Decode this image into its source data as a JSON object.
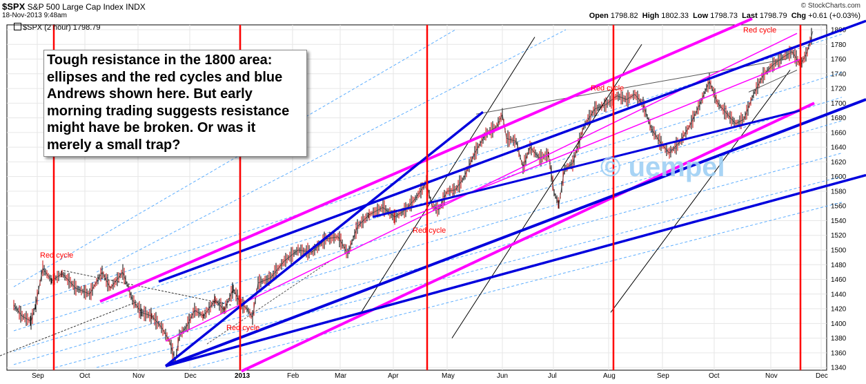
{
  "header": {
    "symbol": "$SPX",
    "name": "S&P 500 Large Cap Index  INDX",
    "date": "18-Nov-2013 9:48am",
    "copyright": "© StockCharts.com",
    "open_label": "Open",
    "open": "1798.82",
    "high_label": "High",
    "high": "1802.33",
    "low_label": "Low",
    "low": "1798.73",
    "last_label": "Last",
    "last": "1798.79",
    "chg_label": "Chg",
    "chg": "+0.61 (+0.03%)",
    "legend": "$SPX (2 hour) 1798.79"
  },
  "annotation": {
    "text": "Tough resistance in the 1800 area: ellipses and the red cycles and blue Andrews shown here. But early morning trading suggests resistance might have be broken. Or was it merely a small trap?"
  },
  "watermark": "© uempel",
  "colors": {
    "red_cycle": "#ff0000",
    "andrews": "#0000dd",
    "ellipse": "#ff00ff",
    "channel": "#3399ff",
    "candle_up": "#000000",
    "candle_down": "#cc0000"
  },
  "chart_data": {
    "type": "line",
    "series": [
      {
        "values": [
          [
            0,
            1425
          ],
          [
            12,
            1410
          ],
          [
            25,
            1403
          ],
          [
            32,
            1426
          ],
          [
            42,
            1475
          ],
          [
            55,
            1458
          ],
          [
            70,
            1468
          ],
          [
            90,
            1448
          ],
          [
            110,
            1440
          ],
          [
            128,
            1470
          ],
          [
            140,
            1448
          ],
          [
            158,
            1470
          ],
          [
            172,
            1432
          ],
          [
            185,
            1415
          ],
          [
            200,
            1410
          ],
          [
            214,
            1395
          ],
          [
            226,
            1375
          ],
          [
            234,
            1348
          ],
          [
            240,
            1384
          ],
          [
            250,
            1395
          ],
          [
            262,
            1418
          ],
          [
            275,
            1410
          ],
          [
            292,
            1432
          ],
          [
            305,
            1418
          ],
          [
            318,
            1447
          ],
          [
            328,
            1428
          ],
          [
            338,
            1420
          ],
          [
            346,
            1408
          ],
          [
            354,
            1455
          ],
          [
            372,
            1462
          ],
          [
            392,
            1485
          ],
          [
            412,
            1500
          ],
          [
            432,
            1497
          ],
          [
            452,
            1515
          ],
          [
            470,
            1518
          ],
          [
            484,
            1495
          ],
          [
            498,
            1532
          ],
          [
            515,
            1548
          ],
          [
            535,
            1558
          ],
          [
            552,
            1545
          ],
          [
            568,
            1555
          ],
          [
            582,
            1570
          ],
          [
            598,
            1592
          ],
          [
            606,
            1560
          ],
          [
            616,
            1555
          ],
          [
            628,
            1580
          ],
          [
            640,
            1582
          ],
          [
            652,
            1598
          ],
          [
            668,
            1632
          ],
          [
            684,
            1658
          ],
          [
            700,
            1668
          ],
          [
            708,
            1685
          ],
          [
            714,
            1652
          ],
          [
            728,
            1648
          ],
          [
            738,
            1612
          ],
          [
            748,
            1640
          ],
          [
            762,
            1625
          ],
          [
            775,
            1630
          ],
          [
            783,
            1578
          ],
          [
            790,
            1562
          ],
          [
            798,
            1610
          ],
          [
            810,
            1618
          ],
          [
            826,
            1668
          ],
          [
            842,
            1692
          ],
          [
            858,
            1698
          ],
          [
            874,
            1710
          ],
          [
            888,
            1705
          ],
          [
            900,
            1712
          ],
          [
            912,
            1698
          ],
          [
            924,
            1665
          ],
          [
            938,
            1645
          ],
          [
            950,
            1632
          ],
          [
            966,
            1648
          ],
          [
            980,
            1670
          ],
          [
            994,
            1698
          ],
          [
            1008,
            1730
          ],
          [
            1020,
            1700
          ],
          [
            1034,
            1685
          ],
          [
            1046,
            1672
          ],
          [
            1058,
            1678
          ],
          [
            1072,
            1712
          ],
          [
            1086,
            1738
          ],
          [
            1100,
            1752
          ],
          [
            1114,
            1762
          ],
          [
            1128,
            1770
          ],
          [
            1140,
            1752
          ],
          [
            1150,
            1770
          ],
          [
            1158,
            1798
          ]
        ],
        "x_unit": "pixels_to_date_map"
      }
    ],
    "x_axis_labels": [
      "Sep",
      "Oct",
      "Nov",
      "Dec",
      "2013",
      "Feb",
      "Mar",
      "Apr",
      "May",
      "Jun",
      "Jul",
      "Aug",
      "Sep",
      "Oct",
      "Nov",
      "Dec"
    ],
    "y_ticks": [
      1340,
      1360,
      1380,
      1400,
      1420,
      1440,
      1460,
      1480,
      1500,
      1520,
      1540,
      1560,
      1580,
      1600,
      1620,
      1640,
      1660,
      1680,
      1700,
      1720,
      1740,
      1760,
      1780,
      1800
    ],
    "ylim": [
      1335,
      1808
    ],
    "grid": true,
    "annotations": [
      {
        "text": "Red cycle",
        "at": "Sep 2012"
      },
      {
        "text": "Red cycle",
        "at": "Jan 2013"
      },
      {
        "text": "Red cycle",
        "at": "Apr 2013"
      },
      {
        "text": "Red cycle",
        "at": "Aug 2013"
      },
      {
        "text": "Red cycle",
        "at": "Nov 2013"
      }
    ]
  }
}
